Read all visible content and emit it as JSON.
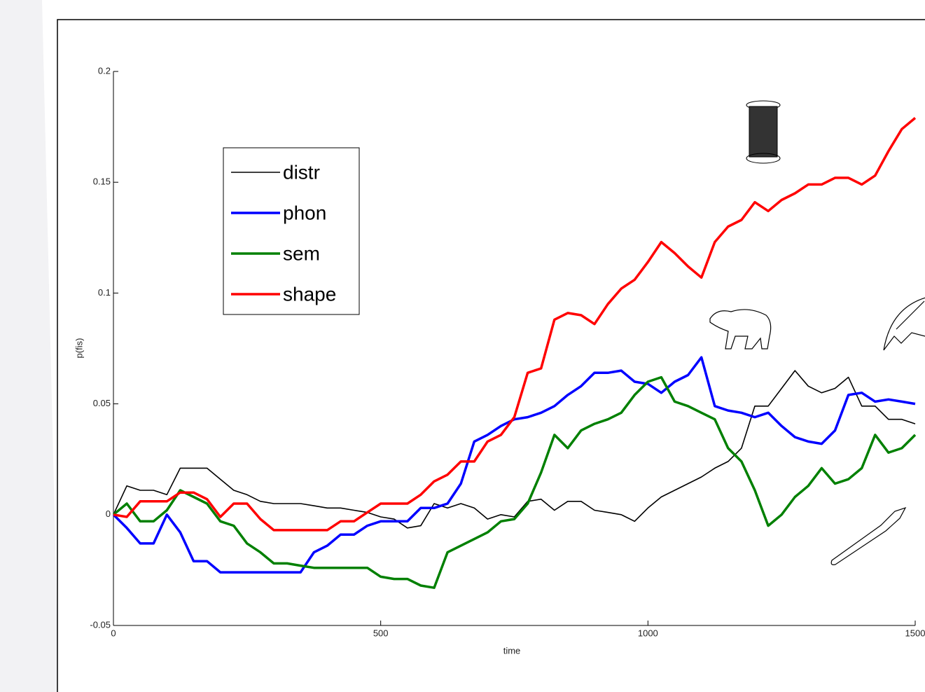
{
  "chart_data": {
    "type": "line",
    "x_label": "time",
    "y_label": "p(fis)",
    "x": [
      0,
      25,
      50,
      75,
      100,
      125,
      150,
      175,
      200,
      225,
      250,
      275,
      300,
      325,
      350,
      375,
      400,
      425,
      450,
      475,
      500,
      525,
      550,
      575,
      600,
      625,
      650,
      675,
      700,
      725,
      750,
      775,
      800,
      825,
      850,
      875,
      900,
      925,
      950,
      975,
      1000,
      1025,
      1050,
      1075,
      1100,
      1125,
      1150,
      1175,
      1200,
      1225,
      1250,
      1275,
      1300,
      1325,
      1350,
      1375,
      1400,
      1425,
      1450,
      1475,
      1500
    ],
    "series": [
      {
        "name": "distr",
        "color": "#000000",
        "values": [
          0,
          0.013,
          0.011,
          0.011,
          0.009,
          0.021,
          0.021,
          0.021,
          0.016,
          0.011,
          0.009,
          0.006,
          0.005,
          0.005,
          0.005,
          0.004,
          0.003,
          0.003,
          0.002,
          0.001,
          -0.001,
          -0.002,
          -0.006,
          -0.005,
          0.005,
          0.003,
          0.005,
          0.003,
          -0.002,
          0,
          -0.001,
          0.006,
          0.007,
          0.002,
          0.006,
          0.006,
          0.002,
          0.001,
          0,
          -0.003,
          0.003,
          0.008,
          0.011,
          0.014,
          0.017,
          0.021,
          0.024,
          0.03,
          0.049,
          0.049,
          0.057,
          0.065,
          0.058,
          0.055,
          0.057,
          0.062,
          0.049,
          0.049,
          0.043,
          0.043,
          0.041
        ]
      },
      {
        "name": "phon",
        "color": "#0000ff",
        "values": [
          0,
          -0.006,
          -0.013,
          -0.013,
          0,
          -0.008,
          -0.021,
          -0.021,
          -0.026,
          -0.026,
          -0.026,
          -0.026,
          -0.026,
          -0.026,
          -0.026,
          -0.017,
          -0.014,
          -0.009,
          -0.009,
          -0.005,
          -0.003,
          -0.003,
          -0.003,
          0.003,
          0.003,
          0.005,
          0.014,
          0.033,
          0.036,
          0.04,
          0.043,
          0.044,
          0.046,
          0.049,
          0.054,
          0.058,
          0.064,
          0.064,
          0.065,
          0.06,
          0.059,
          0.055,
          0.06,
          0.063,
          0.071,
          0.049,
          0.047,
          0.046,
          0.044,
          0.046,
          0.04,
          0.035,
          0.033,
          0.032,
          0.038,
          0.054,
          0.055,
          0.051,
          0.052,
          0.051,
          0.05
        ]
      },
      {
        "name": "sem",
        "color": "#008000",
        "values": [
          0,
          0.005,
          -0.003,
          -0.003,
          0.002,
          0.011,
          0.008,
          0.005,
          -0.003,
          -0.005,
          -0.013,
          -0.017,
          -0.022,
          -0.022,
          -0.023,
          -0.024,
          -0.024,
          -0.024,
          -0.024,
          -0.024,
          -0.028,
          -0.029,
          -0.029,
          -0.032,
          -0.033,
          -0.017,
          -0.014,
          -0.011,
          -0.008,
          -0.003,
          -0.002,
          0.005,
          0.019,
          0.036,
          0.03,
          0.038,
          0.041,
          0.043,
          0.046,
          0.054,
          0.06,
          0.062,
          0.051,
          0.049,
          0.046,
          0.043,
          0.03,
          0.024,
          0.011,
          -0.005,
          0,
          0.008,
          0.013,
          0.021,
          0.014,
          0.016,
          0.021,
          0.036,
          0.028,
          0.03,
          0.036
        ]
      },
      {
        "name": "shape",
        "color": "#ff0000",
        "values": [
          0,
          -0.001,
          0.006,
          0.006,
          0.006,
          0.01,
          0.01,
          0.007,
          -0.001,
          0.005,
          0.005,
          -0.002,
          -0.007,
          -0.007,
          -0.007,
          -0.007,
          -0.007,
          -0.003,
          -0.003,
          0.001,
          0.005,
          0.005,
          0.005,
          0.009,
          0.015,
          0.018,
          0.024,
          0.024,
          0.033,
          0.036,
          0.044,
          0.064,
          0.066,
          0.088,
          0.091,
          0.09,
          0.086,
          0.095,
          0.102,
          0.106,
          0.114,
          0.123,
          0.118,
          0.112,
          0.107,
          0.123,
          0.13,
          0.133,
          0.141,
          0.137,
          0.142,
          0.145,
          0.149,
          0.149,
          0.152,
          0.152,
          0.149,
          0.153,
          0.164,
          0.174,
          0.179
        ]
      }
    ],
    "xlim": [
      0,
      1500
    ],
    "xticks": [
      0,
      500,
      1000,
      1500
    ],
    "ylim": [
      -0.05,
      0.2
    ],
    "yticks": [
      -0.05,
      0,
      0.05,
      0.1,
      0.15,
      0.2
    ],
    "grid": false
  }
}
